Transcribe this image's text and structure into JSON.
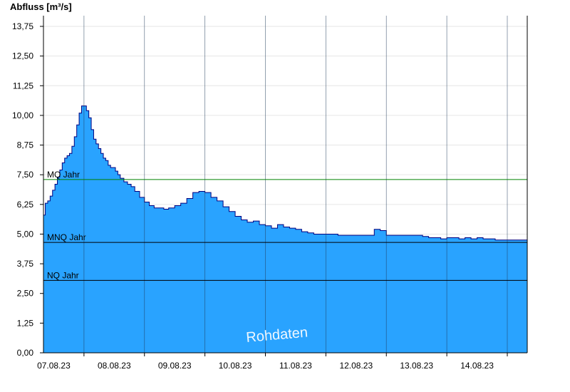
{
  "chart_data": {
    "type": "area",
    "ylabel": "Abfluss [m³/s]",
    "ylim": [
      0,
      14.2
    ],
    "yticks": [
      "0,00",
      "1,25",
      "2,50",
      "3,75",
      "5,00",
      "6,25",
      "7,50",
      "8,75",
      "10,00",
      "11,25",
      "12,50",
      "13,75"
    ],
    "ytick_values": [
      0,
      1.25,
      2.5,
      3.75,
      5.0,
      6.25,
      7.5,
      8.75,
      10.0,
      11.25,
      12.5,
      13.75
    ],
    "xlim_days": [
      6.83,
      14.83
    ],
    "xtick_labels": [
      "07.08.23",
      "08.08.23",
      "09.08.23",
      "10.08.23",
      "11.08.23",
      "12.08.23",
      "13.08.23",
      "14.08.23"
    ],
    "reference_lines": [
      {
        "name": "MQ Jahr",
        "value": 7.3,
        "color": "#008000"
      },
      {
        "name": "MNQ Jahr",
        "value": 4.65,
        "color": "#000000"
      },
      {
        "name": "NQ Jahr",
        "value": 3.05,
        "color": "#000000"
      }
    ],
    "fill_color": "#29a3ff",
    "line_color": "#00007f",
    "watermark": "Rohdaten",
    "series": [
      {
        "x": [
          6.83,
          6.86,
          6.9,
          6.94,
          6.98,
          7.02,
          7.06,
          7.1,
          7.14,
          7.18,
          7.22,
          7.26,
          7.3,
          7.34,
          7.38,
          7.42,
          7.46,
          7.5,
          7.54,
          7.58,
          7.62,
          7.66,
          7.7,
          7.74,
          7.78,
          7.82,
          7.86,
          7.9,
          7.94,
          7.98,
          8.02,
          8.06,
          8.1,
          8.16,
          8.22,
          8.28,
          8.34,
          8.42,
          8.5,
          8.58,
          8.66,
          8.74,
          8.82,
          8.9,
          9.0,
          9.1,
          9.2,
          9.3,
          9.4,
          9.5,
          9.6,
          9.7,
          9.8,
          9.9,
          10.0,
          10.1,
          10.2,
          10.3,
          10.4,
          10.5,
          10.6,
          10.7,
          10.8,
          10.9,
          11.0,
          11.1,
          11.2,
          11.3,
          11.4,
          11.5,
          11.6,
          11.7,
          11.8,
          11.9,
          12.0,
          12.1,
          12.2,
          12.3,
          12.4,
          12.5,
          12.6,
          12.7,
          12.8,
          12.9,
          13.0,
          13.1,
          13.2,
          13.3,
          13.4,
          13.5,
          13.6,
          13.7,
          13.8,
          13.9,
          14.0,
          14.1,
          14.2,
          14.3,
          14.4,
          14.5,
          14.6,
          14.7,
          14.83
        ],
        "y": [
          5.8,
          6.3,
          6.4,
          6.6,
          6.85,
          7.1,
          7.4,
          7.7,
          8.0,
          8.2,
          8.3,
          8.4,
          8.7,
          9.1,
          9.6,
          10.1,
          10.4,
          10.4,
          10.2,
          9.9,
          9.4,
          9.0,
          8.8,
          8.6,
          8.4,
          8.2,
          8.1,
          7.9,
          7.8,
          7.8,
          7.65,
          7.5,
          7.35,
          7.2,
          7.1,
          7.0,
          6.8,
          6.55,
          6.35,
          6.2,
          6.1,
          6.1,
          6.05,
          6.1,
          6.2,
          6.3,
          6.5,
          6.75,
          6.8,
          6.75,
          6.55,
          6.4,
          6.15,
          5.95,
          5.75,
          5.6,
          5.5,
          5.55,
          5.4,
          5.35,
          5.25,
          5.4,
          5.3,
          5.25,
          5.2,
          5.1,
          5.05,
          5.0,
          5.0,
          5.0,
          5.0,
          4.95,
          4.95,
          4.95,
          4.95,
          4.95,
          4.95,
          5.2,
          5.15,
          4.95,
          4.95,
          4.95,
          4.95,
          4.95,
          4.95,
          4.9,
          4.85,
          4.85,
          4.8,
          4.85,
          4.85,
          4.8,
          4.85,
          4.8,
          4.85,
          4.8,
          4.8,
          4.75,
          4.75,
          4.75,
          4.75,
          4.75,
          4.75
        ]
      }
    ]
  }
}
